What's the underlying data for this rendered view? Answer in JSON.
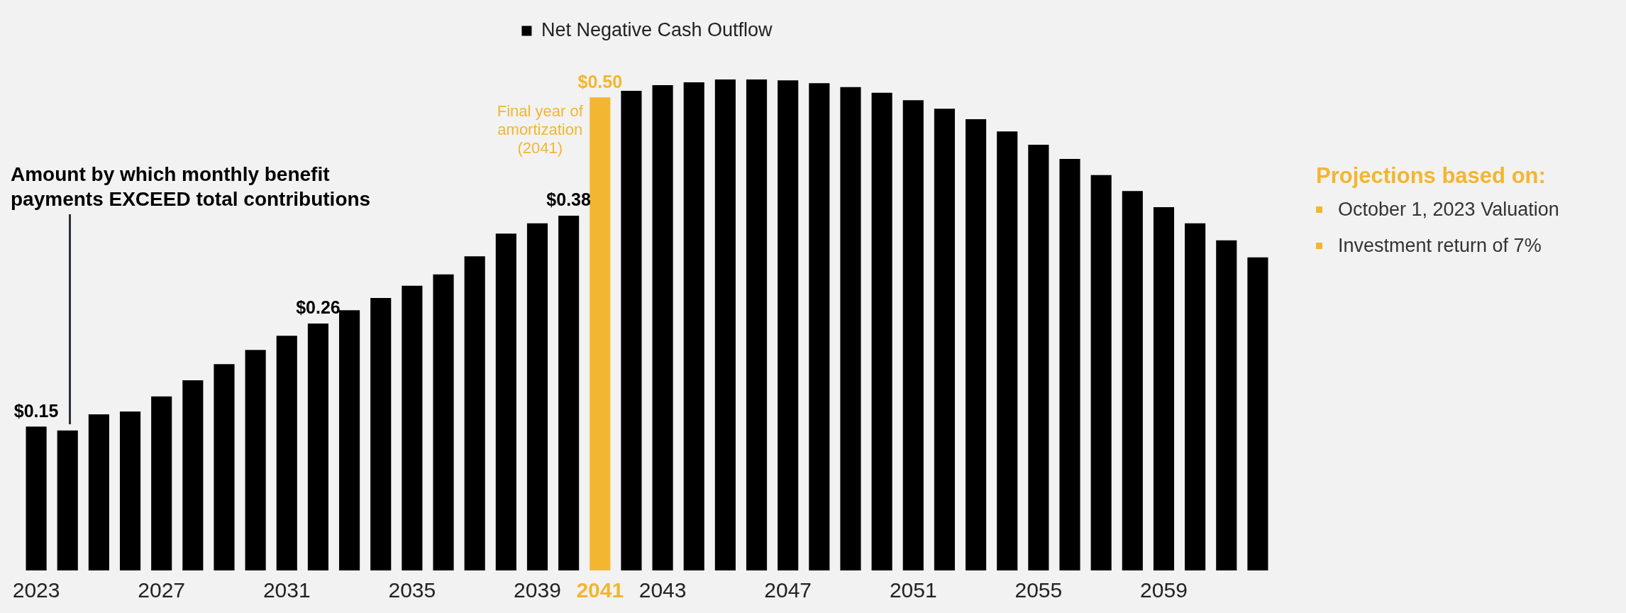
{
  "chart_data": {
    "type": "bar",
    "categories": [
      "2023",
      null,
      null,
      null,
      "2027",
      null,
      null,
      null,
      "2031",
      null,
      null,
      null,
      "2035",
      null,
      null,
      null,
      "2039",
      null,
      "2041",
      null,
      "2043",
      null,
      null,
      null,
      "2047",
      null,
      null,
      null,
      "2051",
      null,
      null,
      null,
      "2055",
      null,
      null,
      null,
      "2059",
      null,
      null,
      null
    ],
    "series": [
      {
        "name": "Net Negative Cash Outflow",
        "color": "#000000",
        "values": [
          0.152,
          0.148,
          0.165,
          0.168,
          0.184,
          0.201,
          0.218,
          0.233,
          0.248,
          0.261,
          0.275,
          0.288,
          0.301,
          0.313,
          0.332,
          0.356,
          0.367,
          0.375,
          0.5,
          0.507,
          0.513,
          0.516,
          0.519,
          0.519,
          0.518,
          0.515,
          0.511,
          0.505,
          0.497,
          0.488,
          0.477,
          0.464,
          0.45,
          0.435,
          0.418,
          0.401,
          0.384,
          0.367,
          0.349,
          0.331
        ],
        "colors": [
          "#000000",
          "#000000",
          "#000000",
          "#000000",
          "#000000",
          "#000000",
          "#000000",
          "#000000",
          "#000000",
          "#000000",
          "#000000",
          "#000000",
          "#000000",
          "#000000",
          "#000000",
          "#000000",
          "#000000",
          "#000000",
          "#f2b630",
          "#000000",
          "#000000",
          "#000000",
          "#000000",
          "#000000",
          "#000000",
          "#000000",
          "#000000",
          "#000000",
          "#000000",
          "#000000",
          "#000000",
          "#000000",
          "#000000",
          "#000000",
          "#000000",
          "#000000",
          "#000000",
          "#000000",
          "#000000",
          "#000000"
        ],
        "value_labels": [
          "$0.15",
          null,
          null,
          null,
          null,
          null,
          null,
          null,
          null,
          "$0.26",
          null,
          null,
          null,
          null,
          null,
          null,
          null,
          "$0.38",
          "$0.50",
          null,
          null,
          null,
          null,
          null,
          null,
          null,
          null,
          null,
          null,
          null,
          null,
          null,
          null,
          null,
          null,
          null,
          null,
          null,
          null,
          null
        ]
      }
    ],
    "annotations": [
      {
        "text": "Final year of amortization (2041)",
        "x": "2041",
        "y": 0.5
      },
      "Amount by which monthly benefit payments EXCEED total contributions",
      "Projections based on:",
      "October 1, 2023 Valuation",
      "Investment return of 7%"
    ],
    "legend": "top",
    "grid": false
  }
}
